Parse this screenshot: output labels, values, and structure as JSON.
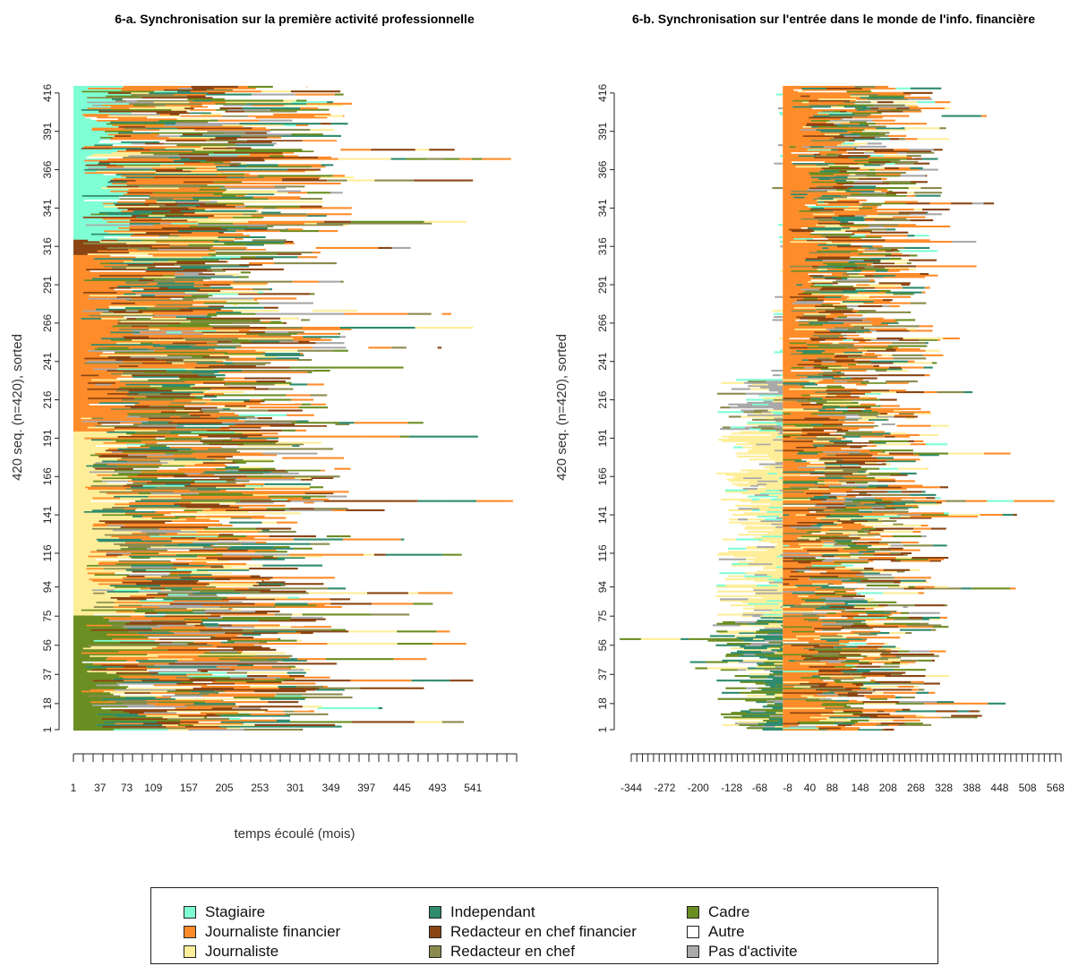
{
  "states": [
    {
      "name": "Stagiaire",
      "color": "#7FFFD4"
    },
    {
      "name": "Journaliste financier",
      "color": "#FF8C2A"
    },
    {
      "name": "Journaliste",
      "color": "#FFEE99"
    },
    {
      "name": "Independant",
      "color": "#2E8B6E"
    },
    {
      "name": "Redacteur en chef financier",
      "color": "#8B4513"
    },
    {
      "name": "Redacteur en chef",
      "color": "#8B8B4E"
    },
    {
      "name": "Cadre",
      "color": "#6B8E23"
    },
    {
      "name": "Autre",
      "color": "#FFFFFF"
    },
    {
      "name": "Pas d'activite",
      "color": "#A9A9A9"
    }
  ],
  "chart_data": [
    {
      "type": "sequence_index",
      "title": "6-a. Synchronisation sur la première activité professionnelle",
      "ylabel": "420 seq. (n=420), sorted",
      "xlabel": "temps écoulé (mois)",
      "n_sequences": 420,
      "y_ticks": [
        "1",
        "18",
        "37",
        "56",
        "75",
        "94",
        "116",
        "141",
        "166",
        "191",
        "216",
        "241",
        "266",
        "291",
        "316",
        "341",
        "366",
        "391",
        "416"
      ],
      "x_ticks": [
        "1",
        "37",
        "73",
        "109",
        "157",
        "205",
        "253",
        "301",
        "349",
        "397",
        "445",
        "493",
        "541"
      ],
      "xlim": [
        1,
        600
      ],
      "dominant_bands": [
        {
          "from": 1,
          "to": 75,
          "state": "Cadre"
        },
        {
          "from": 75,
          "to": 195,
          "state": "Journaliste"
        },
        {
          "from": 195,
          "to": 310,
          "state": "Journaliste financier"
        },
        {
          "from": 310,
          "to": 320,
          "state": "Redacteur en chef financier"
        },
        {
          "from": 320,
          "to": 420,
          "state": "Stagiaire"
        }
      ]
    },
    {
      "type": "sequence_index",
      "title": "6-b. Synchronisation sur l'entrée dans le monde de l'info. financière",
      "ylabel": "420 seq. (n=420), sorted",
      "xlabel": "",
      "n_sequences": 420,
      "y_ticks": [
        "1",
        "18",
        "37",
        "56",
        "75",
        "94",
        "116",
        "141",
        "166",
        "191",
        "216",
        "241",
        "266",
        "291",
        "316",
        "341",
        "366",
        "391",
        "416"
      ],
      "x_ticks": [
        "-344",
        "-272",
        "-200",
        "-128",
        "-68",
        "-8",
        "40",
        "88",
        "148",
        "208",
        "268",
        "328",
        "388",
        "448",
        "508",
        "568"
      ],
      "xlim": [
        -344,
        580
      ],
      "sync_point": 0,
      "dominant_bands": [
        {
          "from": 1,
          "to": 75,
          "state": "Cadre"
        },
        {
          "from": 75,
          "to": 195,
          "state": "Journaliste"
        },
        {
          "from": 195,
          "to": 230,
          "state": "Pas d'activite"
        },
        {
          "from": 230,
          "to": 420,
          "state": "Journaliste financier"
        }
      ]
    }
  ]
}
